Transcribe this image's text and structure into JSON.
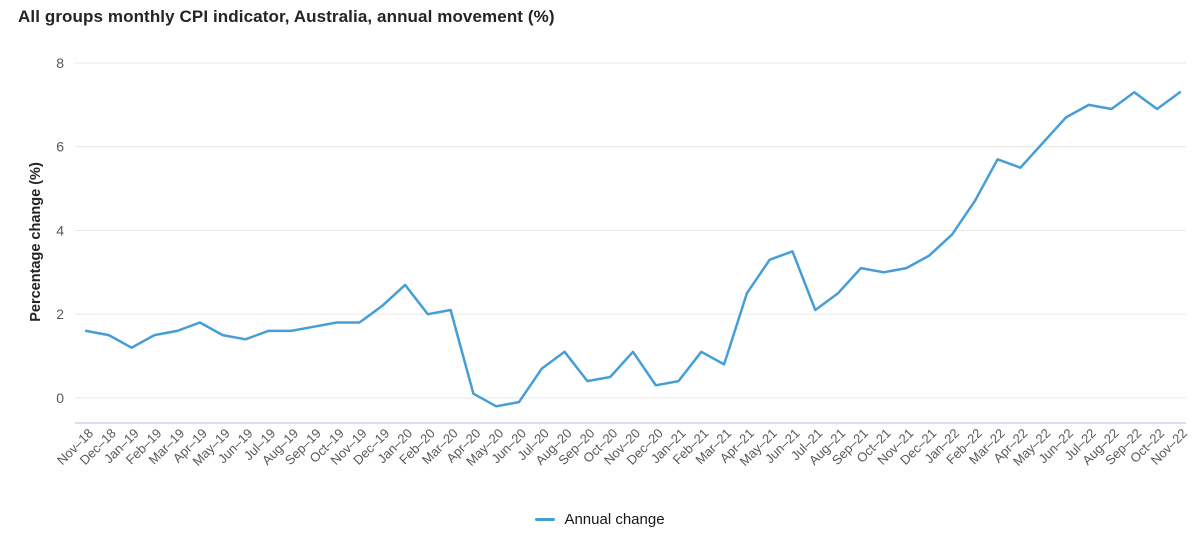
{
  "header": {
    "title": "All groups monthly CPI indicator, Australia, annual movement (%)"
  },
  "chart_data": {
    "type": "line",
    "title": "All groups monthly CPI indicator, Australia, annual movement (%)",
    "xlabel": "",
    "ylabel": "Percentage change (%)",
    "ylim": [
      -0.6,
      8
    ],
    "yticks": [
      0,
      2,
      4,
      6,
      8
    ],
    "grid": true,
    "legend_position": "bottom-center",
    "categories": [
      "Nov–18",
      "Dec–18",
      "Jan–19",
      "Feb–19",
      "Mar–19",
      "Apr–19",
      "May–19",
      "Jun–19",
      "Jul–19",
      "Aug–19",
      "Sep–19",
      "Oct–19",
      "Nov–19",
      "Dec–19",
      "Jan–20",
      "Feb–20",
      "Mar–20",
      "Apr–20",
      "May–20",
      "Jun–20",
      "Jul–20",
      "Aug–20",
      "Sep–20",
      "Oct–20",
      "Nov–20",
      "Dec–20",
      "Jan–21",
      "Feb–21",
      "Mar–21",
      "Apr–21",
      "May–21",
      "Jun–21",
      "Jul–21",
      "Aug–21",
      "Sep–21",
      "Oct–21",
      "Nov–21",
      "Dec–21",
      "Jan–22",
      "Feb–22",
      "Mar–22",
      "Apr–22",
      "May–22",
      "Jun–22",
      "Jul–22",
      "Aug–22",
      "Sep–22",
      "Oct–22",
      "Nov–22"
    ],
    "series": [
      {
        "name": "Annual change",
        "color": "#469ed7",
        "values": [
          1.6,
          1.5,
          1.2,
          1.5,
          1.6,
          1.8,
          1.5,
          1.4,
          1.6,
          1.6,
          1.7,
          1.8,
          1.8,
          2.2,
          2.7,
          2.0,
          2.1,
          0.1,
          -0.2,
          -0.1,
          0.7,
          1.1,
          0.4,
          0.5,
          1.1,
          0.3,
          0.4,
          1.1,
          0.8,
          2.5,
          3.3,
          3.5,
          2.1,
          2.5,
          3.1,
          3.0,
          3.1,
          3.4,
          3.9,
          4.7,
          5.7,
          5.5,
          6.1,
          6.7,
          7.0,
          6.9,
          7.3,
          6.9,
          7.3
        ]
      }
    ],
    "style": {
      "line_width": 2.5,
      "gridline_color": "#e7e7e7",
      "axis_line_color": "#ccd5ea",
      "tick_label_color": "#595959",
      "title_color": "#242424"
    }
  },
  "legend": {
    "label": "Annual change"
  }
}
